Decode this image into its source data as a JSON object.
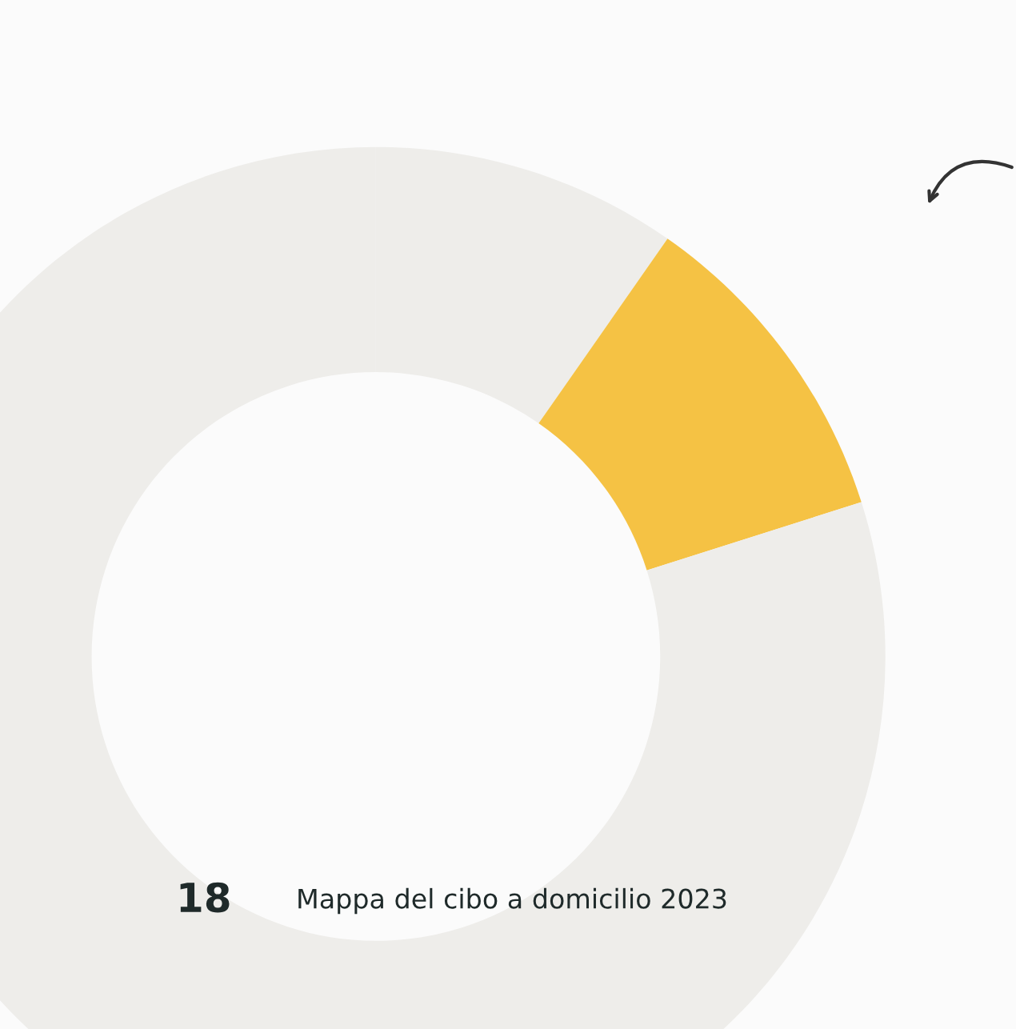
{
  "chart_data": {
    "type": "donut",
    "categories": [
      null,
      null,
      null
    ],
    "values": [
      9.7,
      10.4,
      79.9
    ],
    "colors": [
      "#eeedea",
      "#f5c244",
      "#eeedea"
    ],
    "annotations": [
      "18",
      "Mappa del cibo a domicilio 2023"
    ]
  }
}
